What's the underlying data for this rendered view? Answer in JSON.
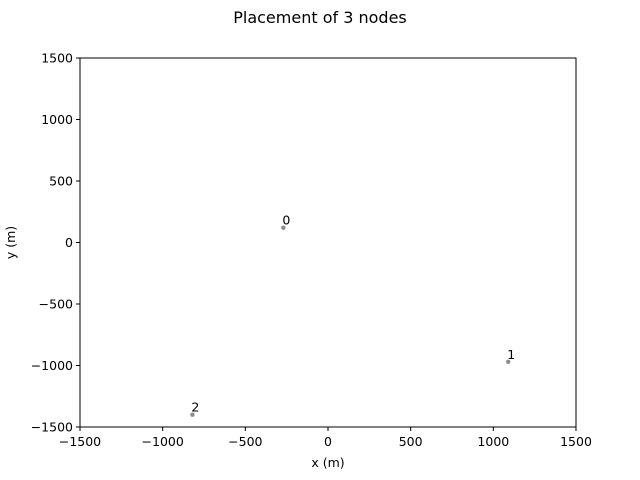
{
  "chart_data": {
    "type": "scatter",
    "title": "Placement of 3 nodes",
    "xlabel": "x (m)",
    "ylabel": "y (m)",
    "xlim": [
      -1500,
      1500
    ],
    "ylim": [
      -1500,
      1500
    ],
    "xticks": [
      -1500,
      -1000,
      -500,
      0,
      500,
      1000,
      1500
    ],
    "yticks": [
      -1500,
      -1000,
      -500,
      0,
      500,
      1000,
      1500
    ],
    "xtick_labels": [
      "−1500",
      "−1000",
      "−500",
      "0",
      "500",
      "1000",
      "1500"
    ],
    "ytick_labels": [
      "−1500",
      "−1000",
      "−500",
      "0",
      "500",
      "1000",
      "1500"
    ],
    "grid": false,
    "marker_color": "#808080",
    "points": [
      {
        "label": "0",
        "x": -270,
        "y": 120
      },
      {
        "label": "1",
        "x": 1090,
        "y": -970
      },
      {
        "label": "2",
        "x": -820,
        "y": -1400
      }
    ]
  }
}
